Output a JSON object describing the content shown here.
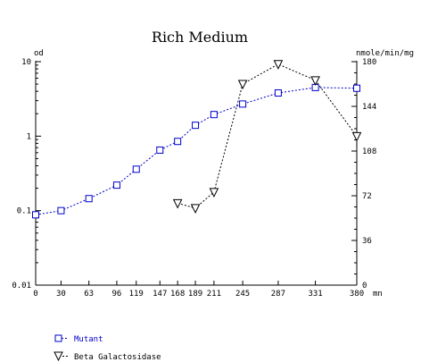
{
  "chart_data": {
    "type": "line",
    "title": "Rich Medium",
    "left_axis": {
      "label": "od",
      "scale": "log",
      "range": [
        0.01,
        10
      ],
      "ticks": [
        0.01,
        0.1,
        1,
        10
      ],
      "tick_labels": [
        "0.01",
        "0.1",
        "1",
        "10"
      ]
    },
    "right_axis": {
      "label": "nmole/min/mg",
      "range": [
        0,
        180
      ],
      "ticks": [
        0,
        36,
        72,
        108,
        144,
        180
      ],
      "tick_labels": [
        "0",
        "36",
        "72",
        "108",
        "144",
        "180"
      ]
    },
    "x_axis": {
      "unit_label": "mn",
      "range": [
        0,
        380
      ],
      "ticks": [
        0,
        30,
        63,
        96,
        119,
        147,
        168,
        189,
        211,
        245,
        287,
        331,
        380
      ],
      "tick_labels": [
        "0",
        "30",
        "63",
        "96",
        "119",
        "147",
        "168",
        "189",
        "211",
        "245",
        "287",
        "331",
        "380"
      ]
    },
    "grid": false,
    "legend_position": "bottom-left",
    "series": [
      {
        "name": "Mutant",
        "axis": "left",
        "marker": "square",
        "color": "#0000cc",
        "x": [
          0,
          30,
          63,
          96,
          119,
          147,
          168,
          189,
          211,
          245,
          287,
          331,
          380
        ],
        "y": [
          0.088,
          0.1,
          0.145,
          0.22,
          0.36,
          0.65,
          0.85,
          1.4,
          1.95,
          2.7,
          3.8,
          4.5,
          4.4
        ]
      },
      {
        "name": "Beta Galactosidase",
        "axis": "right",
        "marker": "triangle-down",
        "color": "#000000",
        "x": [
          168,
          189,
          211,
          245,
          287,
          331,
          380
        ],
        "y": [
          66,
          62,
          75,
          162,
          178,
          165,
          120
        ]
      }
    ]
  }
}
